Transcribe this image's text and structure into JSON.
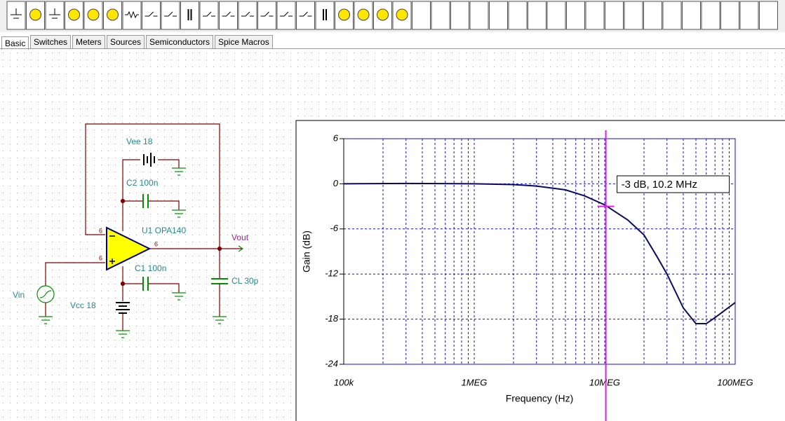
{
  "toolbar": {
    "tabs": [
      "Basic",
      "Switches",
      "Meters",
      "Sources",
      "Semiconductors",
      "Spice Macros"
    ]
  },
  "schematic": {
    "labels": [
      "Vee 18",
      "C2 100n",
      "U1 OPA140",
      "Vout",
      "C1 100n",
      "Vin",
      "Vcc 18",
      "CL 30p"
    ],
    "pins": [
      "6",
      "6",
      "6"
    ]
  },
  "chart_data": {
    "type": "line",
    "x_label": "Frequency (Hz)",
    "y_label": "Gain (dB)",
    "annotation": "-3 dB, 10.2 MHz",
    "xscale": "log",
    "xlim": [
      100000,
      100000000
    ],
    "xticks": [
      {
        "value": 100000,
        "label": "100k"
      },
      {
        "value": 1000000,
        "label": "1MEG"
      },
      {
        "value": 10000000,
        "label": "10MEG"
      },
      {
        "value": 100000000,
        "label": "100MEG"
      }
    ],
    "ylim": [
      -24,
      6
    ],
    "yticks": [
      -24,
      -18,
      -12,
      -6,
      0,
      6
    ],
    "grid": true,
    "minor_grid": true,
    "grid_color": "#1010d0",
    "cursor": {
      "x": 10200000,
      "y": -3,
      "color": "#e020e0"
    },
    "series": [
      {
        "name": "Gain",
        "color": "#0a0a60",
        "x": [
          100000,
          300000,
          1000000,
          2000000,
          3000000,
          5000000,
          7000000,
          10000000,
          15000000,
          20000000,
          25000000,
          30000000,
          40000000,
          50000000,
          60000000,
          70000000,
          100000000
        ],
        "values": [
          0,
          0.05,
          0,
          -0.1,
          -0.3,
          -0.8,
          -1.6,
          -2.8,
          -4.8,
          -6.8,
          -9.6,
          -12,
          -16.5,
          -18.6,
          -18.6,
          -17.8,
          -15.8
        ]
      }
    ]
  }
}
